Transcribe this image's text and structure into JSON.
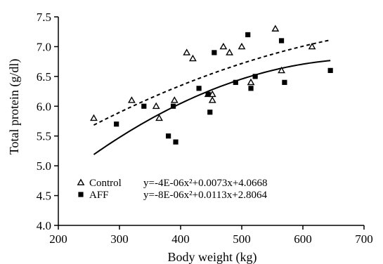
{
  "chart_data": {
    "type": "scatter",
    "xlabel": "Body weight (kg)",
    "ylabel": "Total protein (g/dl)",
    "xlim": [
      200,
      700
    ],
    "ylim": [
      4.0,
      7.5
    ],
    "x_ticks": [
      200,
      300,
      400,
      500,
      600,
      700
    ],
    "y_ticks": [
      4.0,
      4.5,
      5.0,
      5.5,
      6.0,
      6.5,
      7.0,
      7.5
    ],
    "x_tick_labels": [
      "200",
      "300",
      "400",
      "500",
      "600",
      "700"
    ],
    "y_tick_labels": [
      "4.0",
      "4.5",
      "5.0",
      "5.5",
      "6.0",
      "6.5",
      "7.0",
      "7.5"
    ],
    "grid": false,
    "legend_position": "bottom-left",
    "series": [
      {
        "name": "Control",
        "marker": "triangle",
        "trendline": "dashed",
        "equation": "y=-4E-06x²+0.0073x+4.0668",
        "coef": [
          -4e-06,
          0.0073,
          4.0668
        ],
        "fit_range": [
          258,
          645
        ],
        "points": [
          [
            258,
            5.8
          ],
          [
            320,
            6.1
          ],
          [
            360,
            6.0
          ],
          [
            365,
            5.8
          ],
          [
            390,
            6.1
          ],
          [
            410,
            6.9
          ],
          [
            420,
            6.8
          ],
          [
            445,
            6.2
          ],
          [
            452,
            6.1
          ],
          [
            452,
            6.2
          ],
          [
            470,
            7.0
          ],
          [
            480,
            6.9
          ],
          [
            500,
            7.0
          ],
          [
            515,
            6.4
          ],
          [
            555,
            7.3
          ],
          [
            565,
            6.6
          ],
          [
            615,
            7.0
          ]
        ]
      },
      {
        "name": "AFF",
        "marker": "square",
        "trendline": "solid",
        "equation": "y=-8E-06x²+0.0113x+2.8064",
        "coef": [
          -8e-06,
          0.0113,
          2.8064
        ],
        "fit_range": [
          258,
          645
        ],
        "points": [
          [
            295,
            5.7
          ],
          [
            340,
            6.0
          ],
          [
            380,
            5.5
          ],
          [
            388,
            6.0
          ],
          [
            392,
            5.4
          ],
          [
            430,
            6.3
          ],
          [
            445,
            6.2
          ],
          [
            448,
            5.9
          ],
          [
            455,
            6.9
          ],
          [
            490,
            6.4
          ],
          [
            510,
            7.2
          ],
          [
            515,
            6.3
          ],
          [
            522,
            6.5
          ],
          [
            565,
            7.1
          ],
          [
            570,
            6.4
          ],
          [
            645,
            6.6
          ]
        ]
      }
    ]
  }
}
